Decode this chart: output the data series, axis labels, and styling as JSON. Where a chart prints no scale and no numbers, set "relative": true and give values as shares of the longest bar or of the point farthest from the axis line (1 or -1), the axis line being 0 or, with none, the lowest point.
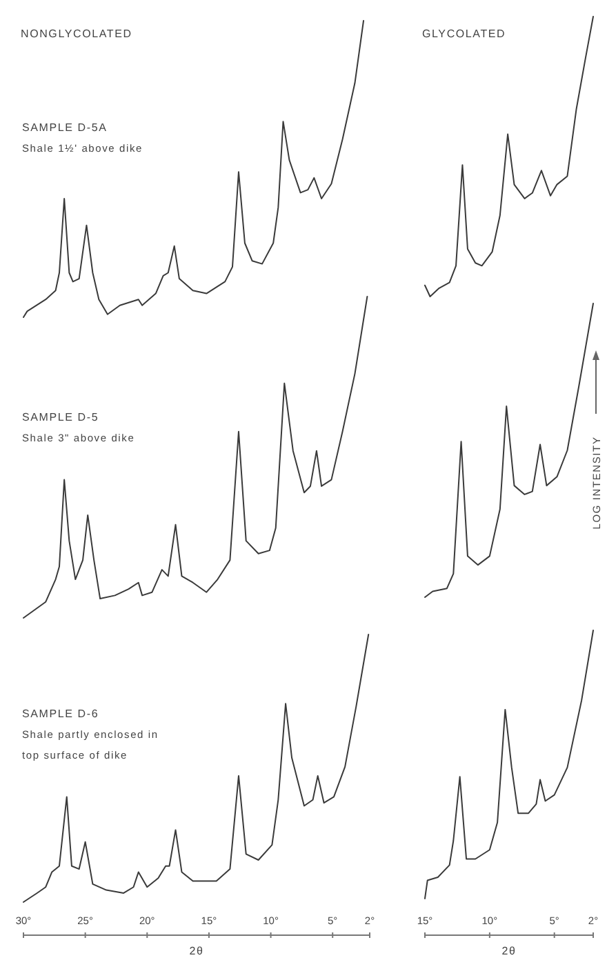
{
  "chart_data": [
    {
      "type": "line",
      "title": "NONGLYCOLATED",
      "annotations": [
        "SAMPLE D-5A",
        "Shale 1½' above dike"
      ],
      "relative": true,
      "xlim": [
        30,
        2
      ],
      "tick_labels": false,
      "color": "#3a3a3a",
      "x": [
        30.0,
        29.7,
        28.2,
        27.4,
        27.1,
        26.7,
        26.3,
        26.0,
        25.5,
        24.9,
        24.4,
        23.9,
        23.2,
        22.2,
        20.7,
        20.4,
        19.3,
        18.7,
        18.3,
        17.8,
        17.4,
        16.3,
        15.2,
        13.7,
        13.1,
        12.6,
        12.1,
        11.5,
        10.7,
        9.8,
        9.4,
        9.0,
        8.5,
        7.6,
        7.0,
        6.5,
        5.9,
        5.1,
        4.2,
        3.2,
        2.5
      ],
      "values": [
        0,
        0.02,
        0.06,
        0.09,
        0.15,
        0.4,
        0.15,
        0.12,
        0.13,
        0.31,
        0.15,
        0.06,
        0.01,
        0.04,
        0.06,
        0.04,
        0.08,
        0.14,
        0.15,
        0.24,
        0.13,
        0.09,
        0.08,
        0.12,
        0.17,
        0.49,
        0.25,
        0.19,
        0.18,
        0.25,
        0.37,
        0.66,
        0.53,
        0.42,
        0.43,
        0.47,
        0.4,
        0.45,
        0.6,
        0.79,
        1
      ]
    },
    {
      "type": "line",
      "title": "GLYCOLATED",
      "relative": true,
      "xlim": [
        15,
        2
      ],
      "tick_labels": false,
      "color": "#3a3a3a",
      "x": [
        15.0,
        14.6,
        13.9,
        13.1,
        12.6,
        12.1,
        11.7,
        11.1,
        10.6,
        9.8,
        9.2,
        8.6,
        8.1,
        7.3,
        6.7,
        6.0,
        5.3,
        4.8,
        4.0,
        3.3,
        2.6,
        2.0
      ],
      "values": [
        0.04,
        0,
        0.03,
        0.05,
        0.11,
        0.47,
        0.17,
        0.12,
        0.11,
        0.16,
        0.29,
        0.58,
        0.4,
        0.35,
        0.37,
        0.45,
        0.36,
        0.4,
        0.43,
        0.67,
        0.85,
        1
      ]
    },
    {
      "type": "line",
      "annotations": [
        "SAMPLE D-5",
        "Shale 3\" above dike"
      ],
      "relative": true,
      "xlim": [
        30,
        2
      ],
      "tick_labels": false,
      "color": "#3a3a3a",
      "x": [
        30.0,
        28.2,
        27.4,
        27.1,
        26.7,
        26.3,
        25.8,
        25.2,
        24.8,
        24.3,
        23.8,
        22.6,
        21.5,
        20.7,
        20.4,
        19.6,
        18.8,
        18.3,
        17.7,
        17.2,
        16.3,
        15.2,
        14.3,
        13.3,
        12.6,
        12.0,
        11.0,
        10.1,
        9.6,
        8.9,
        8.2,
        7.3,
        6.8,
        6.3,
        5.9,
        5.1,
        4.2,
        3.2,
        2.2
      ],
      "values": [
        0,
        0.05,
        0.12,
        0.16,
        0.43,
        0.24,
        0.12,
        0.18,
        0.32,
        0.18,
        0.06,
        0.07,
        0.09,
        0.11,
        0.07,
        0.08,
        0.15,
        0.13,
        0.29,
        0.13,
        0.11,
        0.08,
        0.12,
        0.18,
        0.58,
        0.24,
        0.2,
        0.21,
        0.28,
        0.73,
        0.52,
        0.39,
        0.41,
        0.52,
        0.41,
        0.43,
        0.58,
        0.76,
        1
      ]
    },
    {
      "type": "line",
      "ylabel": "LOG INTENSITY",
      "relative": true,
      "xlim": [
        15,
        2
      ],
      "tick_labels": false,
      "color": "#3a3a3a",
      "x": [
        15.0,
        14.4,
        13.3,
        12.8,
        12.2,
        11.7,
        10.9,
        10.0,
        9.2,
        8.7,
        8.1,
        7.3,
        6.7,
        6.1,
        5.6,
        4.8,
        4.0,
        3.1,
        2.0
      ],
      "values": [
        0,
        0.02,
        0.03,
        0.08,
        0.53,
        0.14,
        0.11,
        0.14,
        0.3,
        0.65,
        0.38,
        0.35,
        0.36,
        0.52,
        0.38,
        0.41,
        0.5,
        0.72,
        1
      ]
    },
    {
      "type": "line",
      "annotations": [
        "SAMPLE D-6",
        "Shale partly enclosed in top surface of dike"
      ],
      "xlabel": "2θ",
      "relative": true,
      "xlim": [
        30,
        2
      ],
      "xticks": [
        {
          "value": 30,
          "label": "30°"
        },
        {
          "value": 25,
          "label": "25°"
        },
        {
          "value": 20,
          "label": "20°"
        },
        {
          "value": 15,
          "label": "15°"
        },
        {
          "value": 10,
          "label": "10°"
        },
        {
          "value": 5,
          "label": "5°"
        },
        {
          "value": 2,
          "label": "2°"
        }
      ],
      "color": "#3a3a3a",
      "x": [
        30.0,
        28.9,
        28.2,
        27.7,
        27.1,
        26.5,
        26.1,
        25.5,
        25.0,
        24.4,
        23.3,
        21.9,
        21.1,
        20.7,
        20.0,
        19.1,
        18.5,
        18.2,
        17.7,
        17.2,
        16.3,
        14.4,
        13.3,
        12.6,
        12.0,
        11.0,
        9.9,
        9.4,
        8.8,
        8.3,
        7.3,
        6.6,
        6.2,
        5.7,
        4.9,
        4.0,
        3.1,
        2.1
      ],
      "values": [
        0.11,
        0.14,
        0.16,
        0.21,
        0.23,
        0.46,
        0.23,
        0.22,
        0.31,
        0.17,
        0.15,
        0.14,
        0.16,
        0.21,
        0.16,
        0.19,
        0.23,
        0.23,
        0.35,
        0.21,
        0.18,
        0.18,
        0.22,
        0.53,
        0.27,
        0.25,
        0.3,
        0.45,
        0.77,
        0.59,
        0.43,
        0.45,
        0.53,
        0.44,
        0.46,
        0.56,
        0.76,
        1
      ]
    },
    {
      "type": "line",
      "xlabel": "2θ",
      "relative": true,
      "xlim": [
        15,
        2
      ],
      "xticks": [
        {
          "value": 15,
          "label": "15°"
        },
        {
          "value": 10,
          "label": "10°"
        },
        {
          "value": 5,
          "label": "5°"
        },
        {
          "value": 2,
          "label": "2°"
        }
      ],
      "color": "#3a3a3a",
      "x": [
        15.0,
        14.8,
        14.0,
        13.1,
        12.8,
        12.3,
        11.8,
        11.1,
        10.0,
        9.4,
        8.8,
        8.3,
        7.8,
        7.0,
        6.4,
        6.1,
        5.7,
        5.0,
        4.0,
        2.9,
        2.0
      ],
      "values": [
        0.12,
        0.18,
        0.19,
        0.23,
        0.31,
        0.52,
        0.25,
        0.25,
        0.28,
        0.37,
        0.74,
        0.55,
        0.4,
        0.4,
        0.43,
        0.51,
        0.44,
        0.46,
        0.55,
        0.77,
        1
      ]
    }
  ]
}
